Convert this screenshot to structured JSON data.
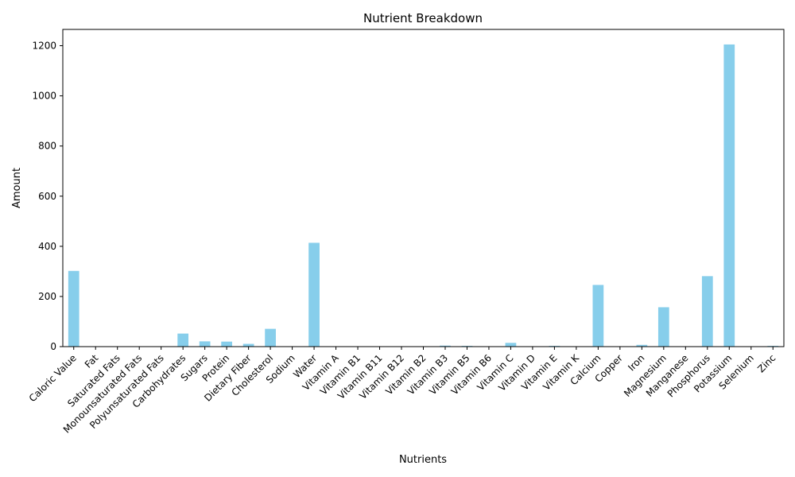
{
  "chart_data": {
    "type": "bar",
    "title": "Nutrient Breakdown",
    "xlabel": "Nutrients",
    "ylabel": "Amount",
    "ylim": [
      0,
      1265
    ],
    "yticks": [
      0,
      200,
      400,
      600,
      800,
      1000,
      1200
    ],
    "bar_color": "#87ceeb",
    "grid": false,
    "categories": [
      "Caloric Value",
      "Fat",
      "Saturated Fats",
      "Monounsaturated Fats",
      "Polyunsaturated Fats",
      "Carbohydrates",
      "Sugars",
      "Protein",
      "Dietary Fiber",
      "Cholesterol",
      "Sodium",
      "Water",
      "Vitamin A",
      "Vitamin B1",
      "Vitamin B11",
      "Vitamin B12",
      "Vitamin B2",
      "Vitamin B3",
      "Vitamin B5",
      "Vitamin B6",
      "Vitamin C",
      "Vitamin D",
      "Vitamin E",
      "Vitamin K",
      "Calcium",
      "Copper",
      "Iron",
      "Magnesium",
      "Manganese",
      "Phosphorus",
      "Potassium",
      "Selenium",
      "Zinc"
    ],
    "values": [
      302,
      1,
      0.5,
      0.3,
      0.3,
      52,
      21,
      20,
      11,
      71,
      0.5,
      414,
      0.1,
      0.5,
      0.1,
      0.1,
      0.6,
      4,
      3,
      0.4,
      15,
      0.1,
      3,
      0.1,
      246,
      1,
      7,
      157,
      0.5,
      281,
      1205,
      0.1,
      3
    ]
  }
}
